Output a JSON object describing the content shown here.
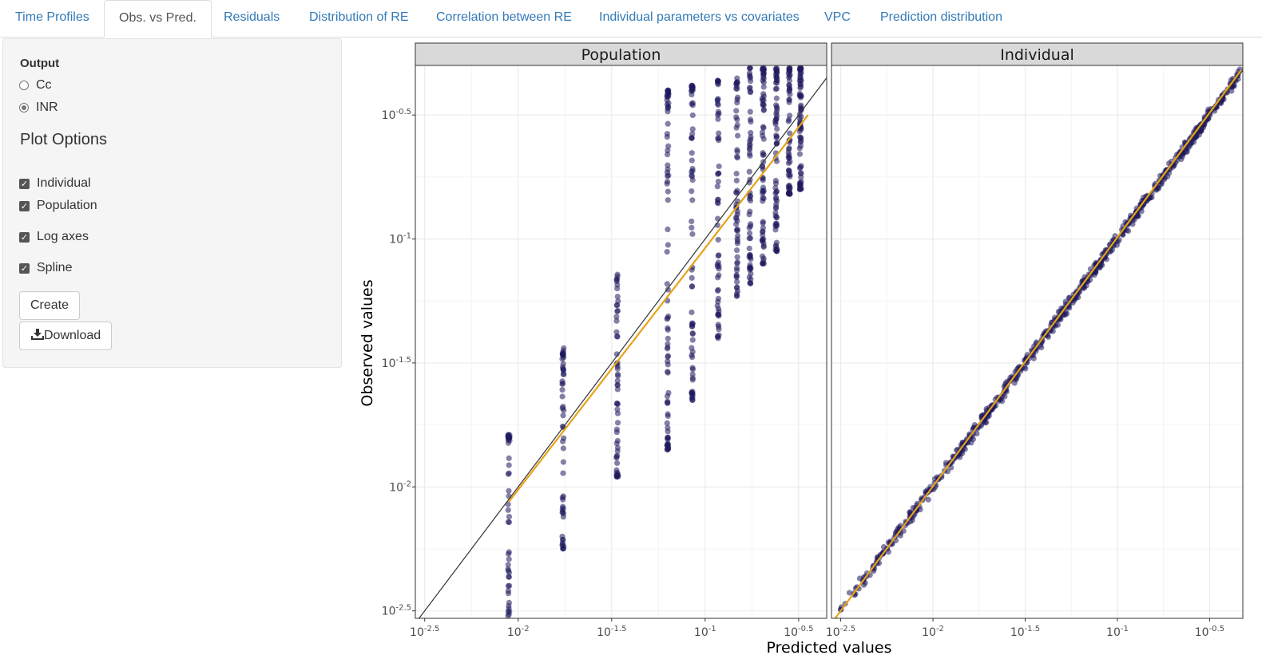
{
  "tabs": [
    {
      "label": "Time Profiles",
      "active": false
    },
    {
      "label": "Obs. vs Pred.",
      "active": true
    },
    {
      "label": "Residuals",
      "active": false
    },
    {
      "label": "Distribution of RE",
      "active": false
    },
    {
      "label": "Correlation between RE",
      "active": false
    },
    {
      "label": "Individual parameters vs covariates",
      "active": false
    },
    {
      "label": "VPC",
      "active": false
    },
    {
      "label": "Prediction distribution",
      "active": false
    }
  ],
  "sidebar": {
    "output_label": "Output",
    "outputs": [
      {
        "label": "Cc",
        "selected": false
      },
      {
        "label": "INR",
        "selected": true
      }
    ],
    "plot_options_title": "Plot Options",
    "options": [
      {
        "label": "Individual",
        "checked": true
      },
      {
        "label": "Population",
        "checked": true
      },
      {
        "label": "Log axes",
        "checked": true
      },
      {
        "label": "Spline",
        "checked": true
      }
    ],
    "create_label": "Create",
    "download_label": "Download"
  },
  "chart_data": {
    "type": "scatter",
    "xlabel": "Predicted values",
    "ylabel": "Observed values",
    "log_axes": true,
    "tick_exponents": [
      "-2.5",
      "-2",
      "-1.5",
      "-1",
      "-0.5"
    ],
    "colors": {
      "points": "#1f1a5e",
      "spline": "#e6a317",
      "identity": "#333333",
      "strip": "#d9d9d9",
      "grid": "#ebebeb"
    },
    "panels": [
      {
        "title": "Population",
        "xlim": [
          -2.55,
          -0.35
        ],
        "ylim": [
          -2.53,
          -0.3
        ],
        "spline": [
          [
            -2.05,
            -2.06
          ],
          [
            -0.45,
            -0.5
          ]
        ],
        "point_groups": [
          {
            "x": -2.05,
            "y_min": -2.52,
            "y_max": -1.79,
            "n": 45
          },
          {
            "x": -1.76,
            "y_min": -2.25,
            "y_max": -1.44,
            "n": 55
          },
          {
            "x": -1.47,
            "y_min": -1.96,
            "y_max": -1.14,
            "n": 55
          },
          {
            "x": -1.2,
            "y_min": -1.85,
            "y_max": -0.4,
            "n": 80
          },
          {
            "x": -1.07,
            "y_min": -1.65,
            "y_max": -0.38,
            "n": 70
          },
          {
            "x": -0.93,
            "y_min": -1.4,
            "y_max": -0.36,
            "n": 60
          },
          {
            "x": -0.83,
            "y_min": -1.23,
            "y_max": -0.35,
            "n": 60
          },
          {
            "x": -0.76,
            "y_min": -1.18,
            "y_max": -0.31,
            "n": 60
          },
          {
            "x": -0.69,
            "y_min": -1.1,
            "y_max": -0.31,
            "n": 70
          },
          {
            "x": -0.62,
            "y_min": -1.05,
            "y_max": -0.31,
            "n": 70
          },
          {
            "x": -0.55,
            "y_min": -0.82,
            "y_max": -0.31,
            "n": 60
          },
          {
            "x": -0.49,
            "y_min": -0.8,
            "y_max": -0.31,
            "n": 70
          }
        ]
      },
      {
        "title": "Individual",
        "xlim": [
          -2.55,
          -0.32
        ],
        "ylim": [
          -2.53,
          -0.3
        ],
        "spline": [
          [
            -2.53,
            -2.53
          ],
          [
            -0.33,
            -0.32
          ]
        ],
        "diagonal_points": {
          "x_min": -2.5,
          "x_max": -0.33,
          "n": 700,
          "spread": 0.03
        }
      }
    ]
  }
}
